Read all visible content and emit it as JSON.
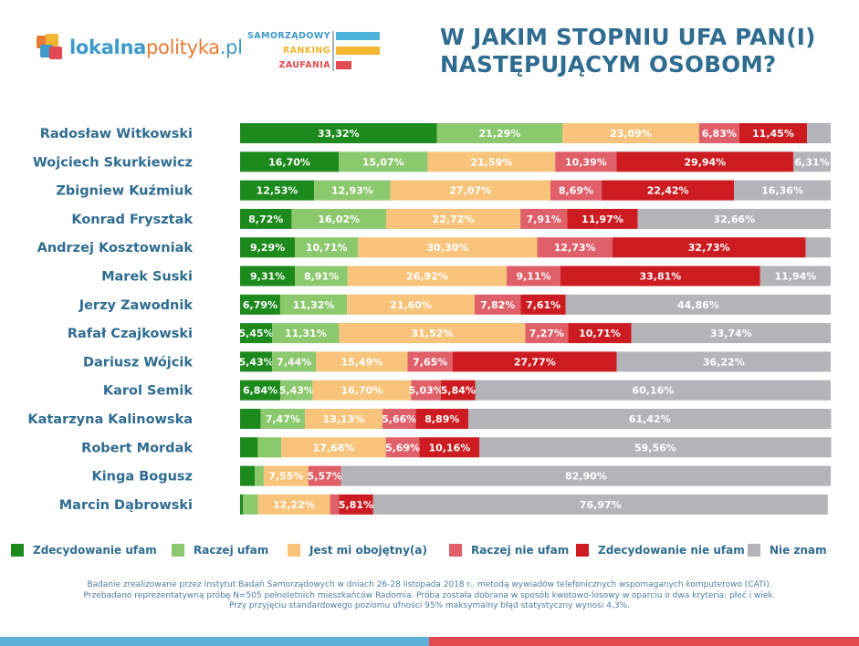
{
  "logo": {
    "part1": "lokalna",
    "part2": "polityka",
    "part3": ".pl"
  },
  "ranking": {
    "line1": "SAMORZĄDOWY",
    "line2": "RANKING",
    "line3": "ZAUFANIA"
  },
  "title": {
    "line1": "W JAKIM STOPNIU UFA PAN(I)",
    "line2": "NASTĘPUJĄCYM OSOBOM?"
  },
  "colors": {
    "strong_trust": "#1c8a1c",
    "trust": "#8cc86e",
    "indifferent": "#f8c47c",
    "distrust": "#e0606a",
    "strong_distrust": "#cc1c22",
    "dont_know": "#b4b4b8",
    "title": "#2f6c90",
    "ranking_blue": "#4fb3dc",
    "ranking_yellow": "#f3b431",
    "ranking_red": "#e14a50"
  },
  "chart_data": {
    "type": "bar",
    "orientation": "horizontal",
    "stacked": true,
    "categories": [
      "Radosław Witkowski",
      "Wojciech Skurkiewicz",
      "Zbigniew Kuźmiuk",
      "Konrad Frysztak",
      "Andrzej Kosztowniak",
      "Marek Suski",
      "Jerzy Zawodnik",
      "Rafał Czajkowski",
      "Dariusz Wójcik",
      "Karol Semik",
      "Katarzyna Kalinowska",
      "Robert Mordak",
      "Kinga Bogusz",
      "Marcin Dąbrowski"
    ],
    "series": [
      {
        "name": "Zdecydowanie ufam",
        "color": "#1c8a1c",
        "values": [
          33.32,
          16.7,
          12.53,
          8.72,
          9.29,
          9.31,
          6.79,
          5.45,
          5.43,
          6.84,
          3.5,
          3.0,
          2.5,
          0.5
        ],
        "labels": [
          "33,32%",
          "16,70%",
          "12,53%",
          "8,72%",
          "9,29%",
          "9,31%",
          "6,79%",
          "5,45%",
          "5,43%",
          "6,84%",
          "",
          "",
          "",
          ""
        ]
      },
      {
        "name": "Raczej ufam",
        "color": "#8cc86e",
        "values": [
          21.29,
          15.07,
          12.93,
          16.02,
          10.71,
          8.91,
          11.32,
          11.31,
          7.44,
          5.43,
          7.47,
          4.0,
          1.5,
          2.5
        ],
        "labels": [
          "21,29%",
          "15,07%",
          "12,93%",
          "16,02%",
          "10,71%",
          "8,91%",
          "11,32%",
          "11,31%",
          "7,44%",
          "5,43%",
          "7,47%",
          "",
          "",
          ""
        ]
      },
      {
        "name": "Jest mi obojętny(a)",
        "color": "#f8c47c",
        "values": [
          23.09,
          21.59,
          27.07,
          22.72,
          30.3,
          26.92,
          21.6,
          31.52,
          15.49,
          16.7,
          13.13,
          17.68,
          7.55,
          12.22
        ],
        "labels": [
          "23,09%",
          "21,59%",
          "27,07%",
          "22,72%",
          "30,30%",
          "26,92%",
          "21,60%",
          "31,52%",
          "15,49%",
          "16,70%",
          "13,13%",
          "17,68%",
          "7,55%",
          "12,22%"
        ]
      },
      {
        "name": "Raczej nie ufam",
        "color": "#e0606a",
        "values": [
          6.83,
          10.39,
          8.69,
          7.91,
          12.73,
          9.11,
          7.82,
          7.27,
          7.65,
          5.03,
          5.66,
          5.69,
          5.57,
          1.5
        ],
        "labels": [
          "6,83%",
          "10,39%",
          "8,69%",
          "7,91%",
          "12,73%",
          "9,11%",
          "7,82%",
          "7,27%",
          "7,65%",
          "5,03%",
          "5,66%",
          "5,69%",
          "5,57%",
          ""
        ]
      },
      {
        "name": "Zdecydowanie nie ufam",
        "color": "#cc1c22",
        "values": [
          11.45,
          29.94,
          22.42,
          11.97,
          32.73,
          33.81,
          7.61,
          10.71,
          27.77,
          5.84,
          8.89,
          10.16,
          0,
          5.81
        ],
        "labels": [
          "11,45%",
          "29,94%",
          "22,42%",
          "11,97%",
          "32,73%",
          "33,81%",
          "7,61%",
          "10,71%",
          "27,77%",
          "5,84%",
          "8,89%",
          "10,16%",
          "",
          "5,81%"
        ]
      },
      {
        "name": "Nie znam",
        "color": "#b4b4b8",
        "values": [
          4.02,
          6.31,
          16.36,
          32.66,
          4.24,
          11.94,
          44.86,
          33.74,
          36.22,
          60.16,
          61.42,
          59.56,
          82.9,
          76.97
        ],
        "labels": [
          "",
          "6,31%",
          "16,36%",
          "32,66%",
          "",
          "11,94%",
          "44,86%",
          "33,74%",
          "36,22%",
          "60,16%",
          "61,42%",
          "59,56%",
          "82,90%",
          "76,97%"
        ]
      }
    ],
    "xlim": [
      0,
      100
    ],
    "grid": false,
    "legend": "bottom"
  },
  "legend": [
    {
      "label": "Zdecydowanie ufam",
      "color": "#1c8a1c"
    },
    {
      "label": "Raczej ufam",
      "color": "#8cc86e"
    },
    {
      "label": "Jest mi obojętny(a)",
      "color": "#f8c47c"
    },
    {
      "label": "Raczej nie ufam",
      "color": "#e0606a"
    },
    {
      "label": "Zdecydowanie nie ufam",
      "color": "#cc1c22"
    },
    {
      "label": "Nie znam",
      "color": "#b4b4b8"
    }
  ],
  "footnote": {
    "line1": "Badanie zrealizowane przez Instytut Badań Samorządowych w dniach 26-28 listopada 2018 r.. metodą wywiadów telefonicznych wspomaganych komputerowo (CATI).",
    "line2": "Przebadano reprezentatywną próbę N=505 pełnoletnich mieszkańców Radomia. Próba została dobrana w sposób kwotowo-losowy w oparciu o dwa kryteria: płeć i wiek.",
    "line3": "Przy przyjęciu standardowego poziomu ufności 95% maksymalny błąd statystyczny wynosi 4,3%."
  }
}
